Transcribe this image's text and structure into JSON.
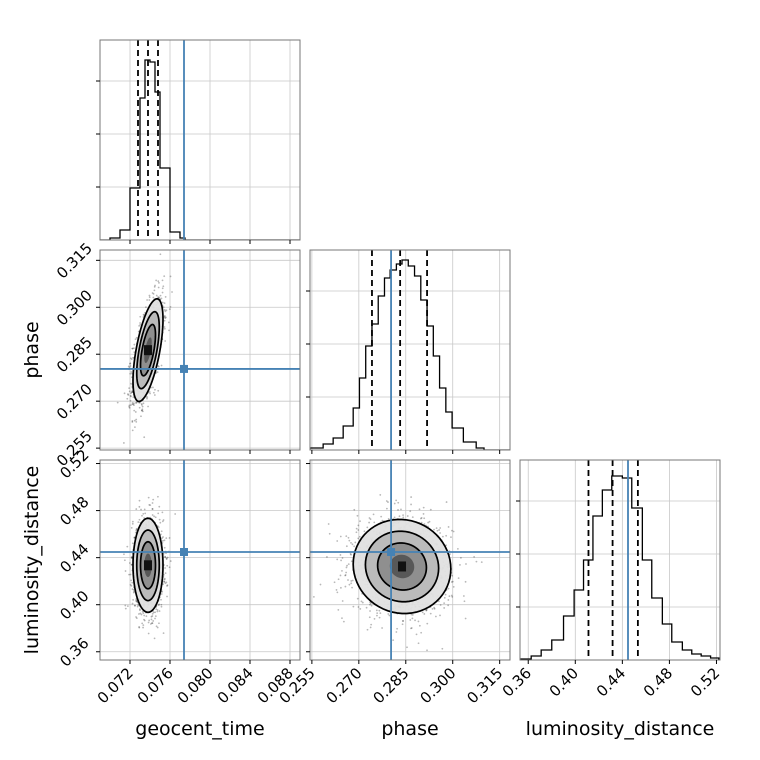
{
  "chart_data": {
    "type": "corner",
    "parameters": [
      "geocent_time",
      "phase",
      "luminosity_distance"
    ],
    "labels": {
      "geocent_time": "geocent_time",
      "phase": "phase",
      "luminosity_distance": "luminosity_distance"
    },
    "truths": {
      "geocent_time": 0.0774,
      "phase": 0.2803,
      "luminosity_distance": 0.4448
    },
    "ranges": {
      "geocent_time": [
        0.069,
        0.089
      ],
      "phase": [
        0.2544,
        0.3183
      ],
      "luminosity_distance": [
        0.353,
        0.523
      ]
    },
    "ticks": {
      "geocent_time": [
        "0.072",
        "0.076",
        "0.080",
        "0.084",
        "0.088"
      ],
      "phase": [
        "0.255",
        "0.270",
        "0.285",
        "0.300",
        "0.315"
      ],
      "luminosity_distance": [
        "0.36",
        "0.40",
        "0.44",
        "0.48",
        "0.52"
      ]
    },
    "tick_values": {
      "geocent_time": [
        0.072,
        0.076,
        0.08,
        0.084,
        0.088
      ],
      "phase": [
        0.255,
        0.27,
        0.285,
        0.3,
        0.315
      ],
      "luminosity_distance": [
        0.36,
        0.4,
        0.44,
        0.48,
        0.52
      ]
    },
    "quantiles": {
      "geocent_time": [
        0.0728,
        0.0738,
        0.0748
      ],
      "phase": [
        0.2742,
        0.2832,
        0.2918
      ],
      "luminosity_distance": [
        0.4112,
        0.4317,
        0.4532
      ]
    },
    "histograms": {
      "geocent_time": {
        "edges": [
          0.069,
          0.07,
          0.071,
          0.072,
          0.073,
          0.0735,
          0.074,
          0.0745,
          0.075,
          0.076,
          0.077,
          0.0775,
          0.078
        ],
        "counts": [
          0,
          0.01,
          0.05,
          0.26,
          0.71,
          0.9,
          0.89,
          0.74,
          0.36,
          0.04,
          0.01,
          0
        ]
      },
      "phase": {
        "edges": [
          0.2544,
          0.2586,
          0.2618,
          0.265,
          0.2682,
          0.2702,
          0.2722,
          0.2742,
          0.2762,
          0.2782,
          0.28,
          0.282,
          0.2838,
          0.2858,
          0.2878,
          0.2898,
          0.2918,
          0.2938,
          0.2958,
          0.2978,
          0.2998,
          0.3034,
          0.3075,
          0.31
        ],
        "counts": [
          0.01,
          0.03,
          0.06,
          0.12,
          0.21,
          0.36,
          0.52,
          0.63,
          0.77,
          0.86,
          0.9,
          0.93,
          0.95,
          0.92,
          0.87,
          0.75,
          0.62,
          0.47,
          0.31,
          0.19,
          0.11,
          0.04,
          0.01
        ]
      },
      "luminosity_distance": {
        "edges": [
          0.354,
          0.3625,
          0.371,
          0.38,
          0.39,
          0.399,
          0.407,
          0.415,
          0.423,
          0.431,
          0.44,
          0.448,
          0.457,
          0.465,
          0.474,
          0.482,
          0.491,
          0.499,
          0.507,
          0.515,
          0.522
        ],
        "counts": [
          0.005,
          0.02,
          0.05,
          0.1,
          0.22,
          0.35,
          0.5,
          0.72,
          0.85,
          0.92,
          0.91,
          0.76,
          0.5,
          0.31,
          0.18,
          0.09,
          0.05,
          0.03,
          0.02,
          0.01
        ]
      }
    },
    "contours": {
      "phase_vs_geocent_time": {
        "center": [
          0.0738,
          0.2863
        ],
        "sigma": [
          0.00075,
          0.0082
        ],
        "rho": 0.6
      },
      "luminosity_distance_vs_geocent_time": {
        "center": [
          0.0738,
          0.4335
        ],
        "sigma": [
          0.00075,
          0.02
        ],
        "rho": 0.0
      },
      "luminosity_distance_vs_phase": {
        "center": [
          0.2838,
          0.4325
        ],
        "sigma": [
          0.0078,
          0.02
        ],
        "rho": -0.05
      }
    },
    "contour_levels_sigma": [
      0.5,
      1.0,
      1.5,
      2.0
    ],
    "truth_color": "#4682b4",
    "grid": true
  }
}
